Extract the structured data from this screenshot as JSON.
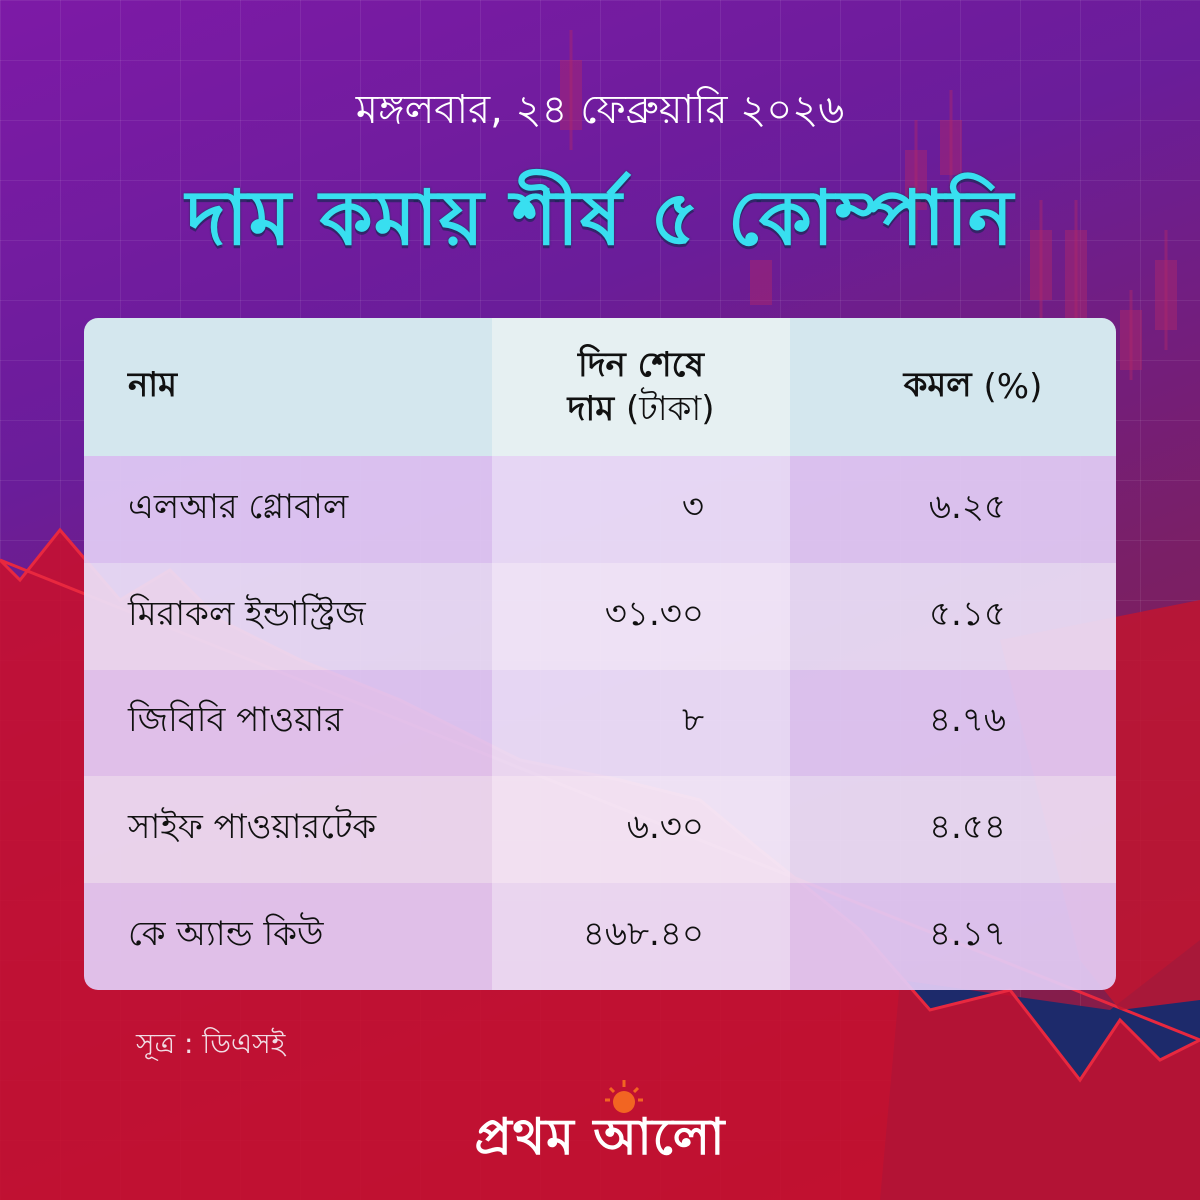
{
  "header": {
    "date": "মঙ্গলবার, ২৪ ফেব্রুয়ারি ২০২৬",
    "title": "দাম কমায় শীর্ষ ৫ কোম্পানি"
  },
  "table": {
    "col_name": "নাম",
    "col_price_line1": "দিন শেষে",
    "col_price_line2_bold": "দাম",
    "col_price_line2_unit": "(টাকা)",
    "col_change_bold": "কমল",
    "col_change_unit": "(%)",
    "rows": [
      {
        "name": "এলআর গ্লোবাল",
        "price": "৩",
        "change": "৬.২৫"
      },
      {
        "name": "মিরাকল ইন্ডাস্ট্রিজ",
        "price": "৩১.৩০",
        "change": "৫.১৫"
      },
      {
        "name": "জিবিবি পাওয়ার",
        "price": "৮",
        "change": "৪.৭৬"
      },
      {
        "name": "সাইফ পাওয়ারটেক",
        "price": "৬.৩০",
        "change": "৪.৫৪"
      },
      {
        "name": "কে অ্যান্ড কিউ",
        "price": "৪৬৮.৪০",
        "change": "৪.১৭"
      }
    ]
  },
  "source": "সূত্র : ডিএসই",
  "brand": {
    "logo_text": "প্রথম আলো",
    "sun_color": "#f26522"
  },
  "colors": {
    "headline": "#38dff0",
    "background_purple": "#6a1d9a",
    "background_red": "#c8102e",
    "background_navy": "#1d2a6b"
  }
}
